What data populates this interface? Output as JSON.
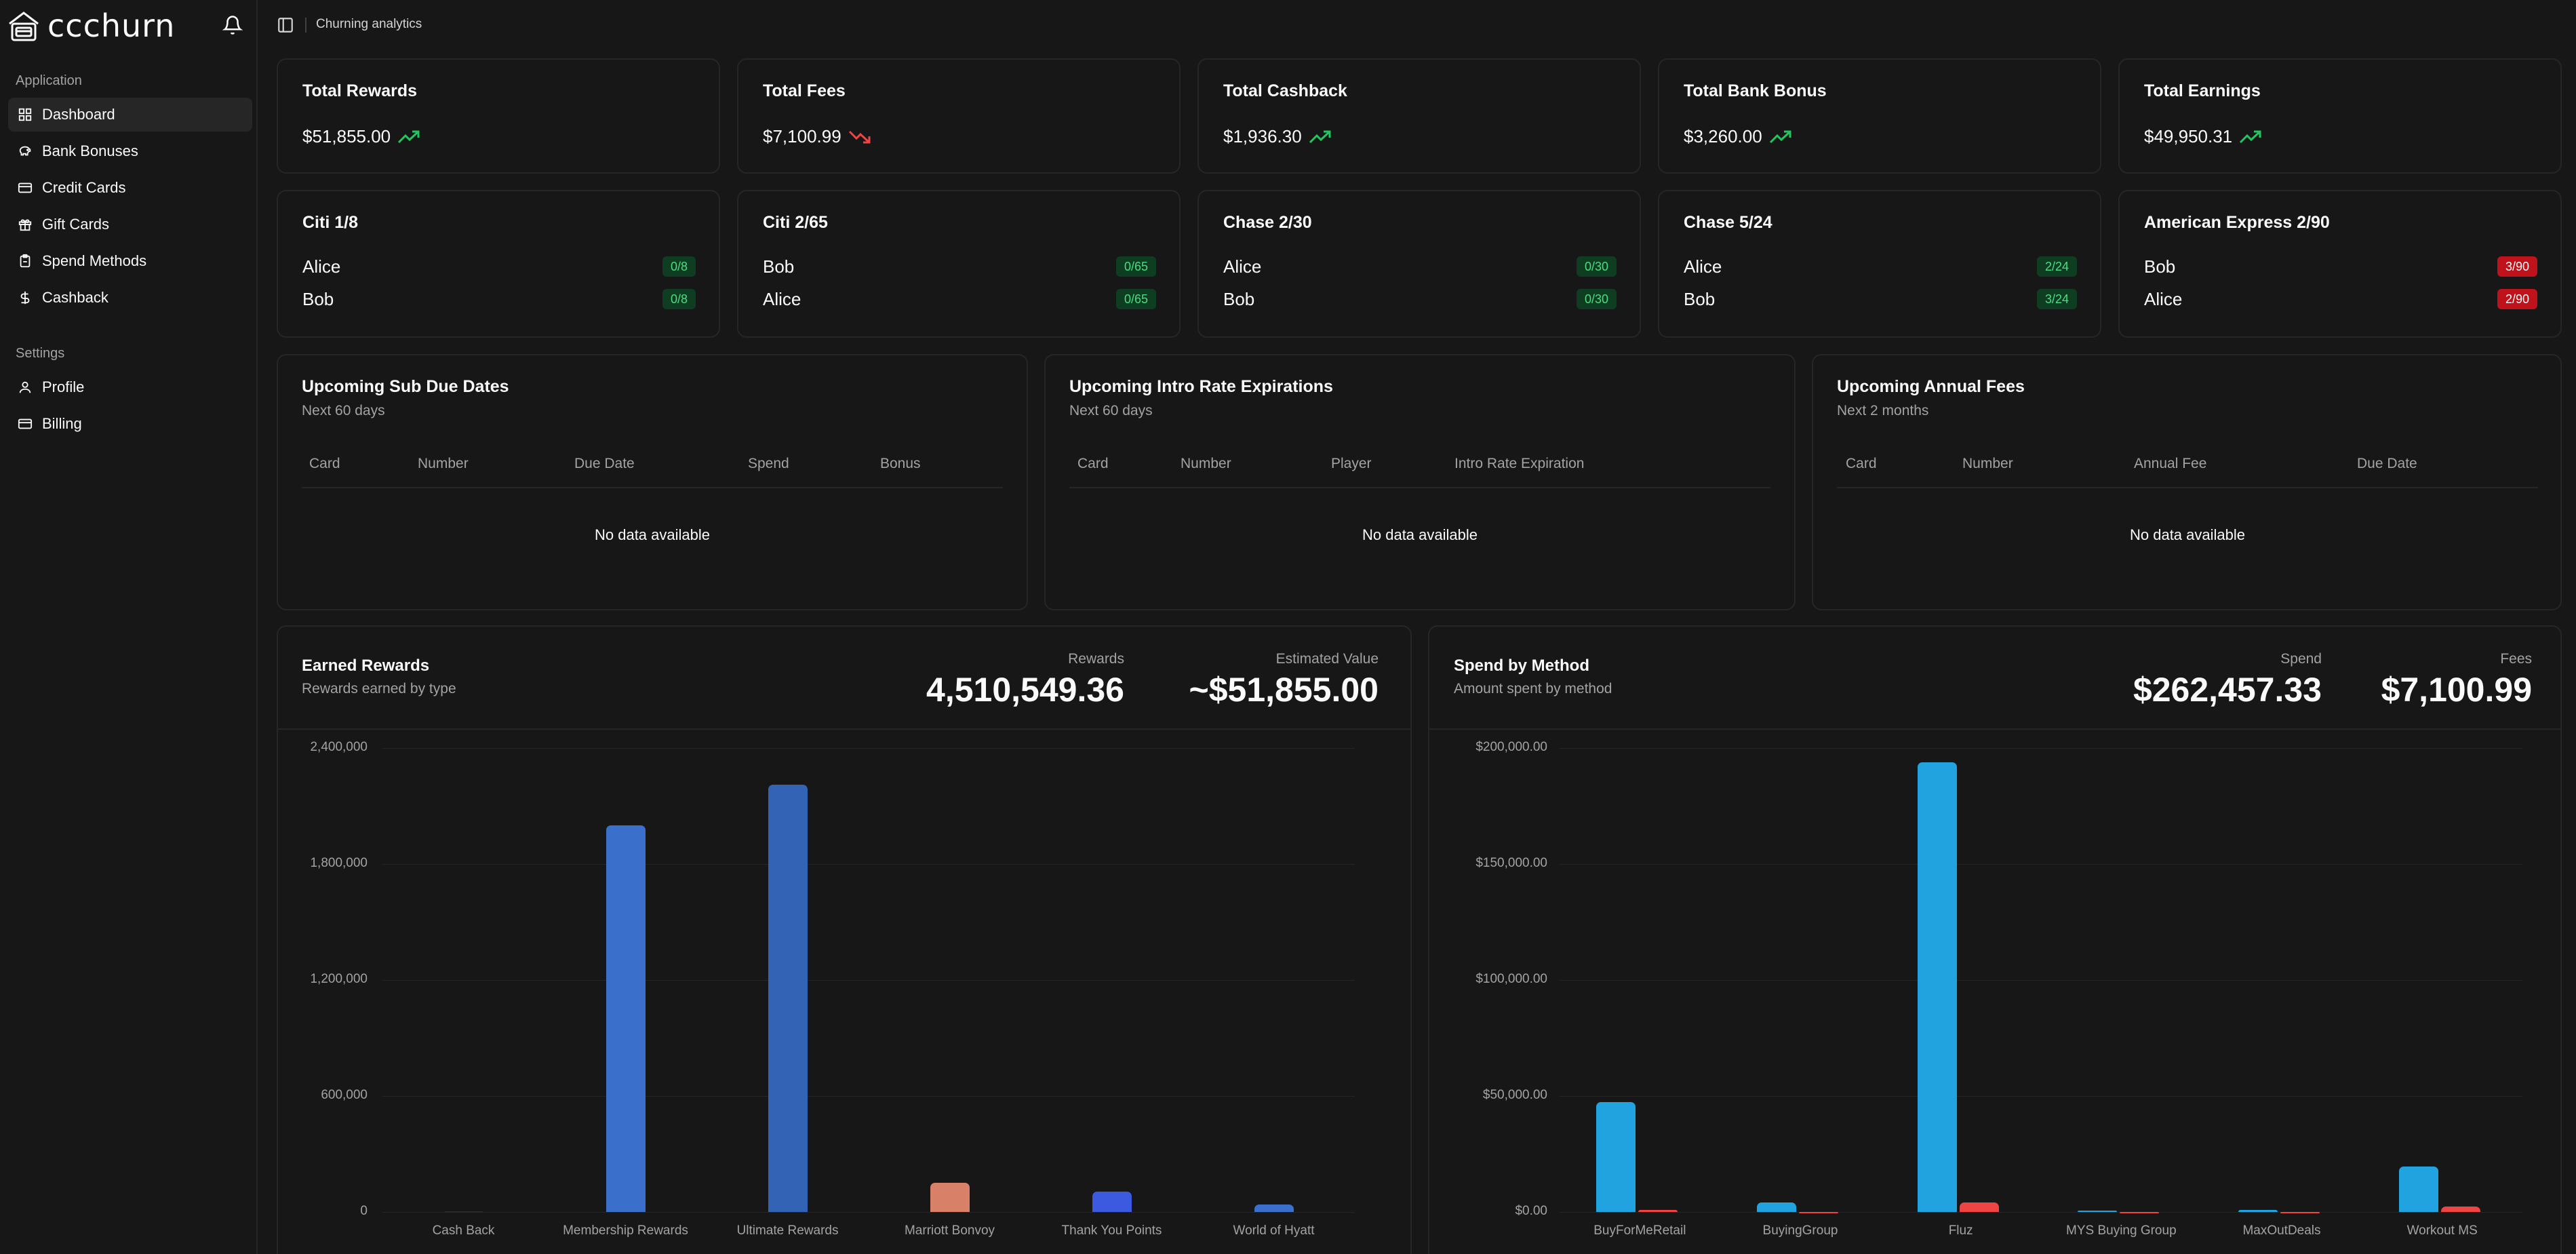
{
  "app": {
    "brand": "ccchurn",
    "breadcrumb": "Churning analytics"
  },
  "sidebar": {
    "application_label": "Application",
    "settings_label": "Settings",
    "items": [
      {
        "label": "Dashboard",
        "icon": "grid-icon",
        "active": true
      },
      {
        "label": "Bank Bonuses",
        "icon": "piggy-bank-icon"
      },
      {
        "label": "Credit Cards",
        "icon": "credit-card-icon"
      },
      {
        "label": "Gift Cards",
        "icon": "gift-icon"
      },
      {
        "label": "Spend Methods",
        "icon": "clipboard-icon"
      },
      {
        "label": "Cashback",
        "icon": "dollar-icon"
      }
    ],
    "settings": [
      {
        "label": "Profile",
        "icon": "user-icon"
      },
      {
        "label": "Billing",
        "icon": "credit-card-icon"
      }
    ]
  },
  "stats": [
    {
      "title": "Total Rewards",
      "value": "$51,855.00",
      "trend": "up"
    },
    {
      "title": "Total Fees",
      "value": "$7,100.99",
      "trend": "down"
    },
    {
      "title": "Total Cashback",
      "value": "$1,936.30",
      "trend": "up"
    },
    {
      "title": "Total Bank Bonus",
      "value": "$3,260.00",
      "trend": "up"
    },
    {
      "title": "Total Earnings",
      "value": "$49,950.31",
      "trend": "up"
    }
  ],
  "rules": [
    {
      "title": "Citi 1/8",
      "rows": [
        {
          "name": "Alice",
          "badge": "0/8",
          "status": "ok"
        },
        {
          "name": "Bob",
          "badge": "0/8",
          "status": "ok"
        }
      ]
    },
    {
      "title": "Citi 2/65",
      "rows": [
        {
          "name": "Bob",
          "badge": "0/65",
          "status": "ok"
        },
        {
          "name": "Alice",
          "badge": "0/65",
          "status": "ok"
        }
      ]
    },
    {
      "title": "Chase 2/30",
      "rows": [
        {
          "name": "Alice",
          "badge": "0/30",
          "status": "ok"
        },
        {
          "name": "Bob",
          "badge": "0/30",
          "status": "ok"
        }
      ]
    },
    {
      "title": "Chase 5/24",
      "rows": [
        {
          "name": "Alice",
          "badge": "2/24",
          "status": "ok"
        },
        {
          "name": "Bob",
          "badge": "3/24",
          "status": "ok"
        }
      ]
    },
    {
      "title": "American Express 2/90",
      "rows": [
        {
          "name": "Bob",
          "badge": "3/90",
          "status": "bad"
        },
        {
          "name": "Alice",
          "badge": "2/90",
          "status": "bad"
        }
      ]
    }
  ],
  "tables": [
    {
      "title": "Upcoming Sub Due Dates",
      "subtitle": "Next 60 days",
      "columns": [
        "Card",
        "Number",
        "Due Date",
        "Spend",
        "Bonus"
      ],
      "empty": "No data available"
    },
    {
      "title": "Upcoming Intro Rate Expirations",
      "subtitle": "Next 60 days",
      "columns": [
        "Card",
        "Number",
        "Player",
        "Intro Rate Expiration"
      ],
      "empty": "No data available"
    },
    {
      "title": "Upcoming Annual Fees",
      "subtitle": "Next 2 months",
      "columns": [
        "Card",
        "Number",
        "Annual Fee",
        "Due Date"
      ],
      "empty": "No data available"
    }
  ],
  "rewards_panel": {
    "title": "Earned Rewards",
    "subtitle": "Rewards earned by type",
    "metric1_label": "Rewards",
    "metric1_value": "4,510,549.36",
    "metric2_label": "Estimated Value",
    "metric2_value": "~$51,855.00"
  },
  "spend_panel": {
    "title": "Spend by Method",
    "subtitle": "Amount spent by method",
    "metric1_label": "Spend",
    "metric1_value": "$262,457.33",
    "metric2_label": "Fees",
    "metric2_value": "$7,100.99"
  },
  "chart_data": [
    {
      "type": "bar",
      "title": "Earned Rewards",
      "categories": [
        "Cash Back",
        "Membership Rewards",
        "Ultimate Rewards",
        "Marriott Bonvoy",
        "Thank You Points",
        "World of Hyatt"
      ],
      "values": [
        4000,
        2000000,
        2210000,
        150000,
        105000,
        40000
      ],
      "colors": [
        "#2a2a2a",
        "#3a70cc",
        "#3263b5",
        "#d98068",
        "#3c5ae0",
        "#3a70cc"
      ],
      "yticks": [
        "0",
        "600,000",
        "1,200,000",
        "1,800,000",
        "2,400,000"
      ],
      "ylim": [
        0,
        2400000
      ],
      "grid": true
    },
    {
      "type": "bar",
      "title": "Spend by Method",
      "categories": [
        "BuyForMeRetail",
        "BuyingGroup",
        "Fluz",
        "MYS Buying Group",
        "MaxOutDeals",
        "Workout MS"
      ],
      "series": [
        {
          "values": [
            47500,
            4000,
            194000,
            500,
            1000,
            19500
          ],
          "color": "#21a3e0"
        },
        {
          "values": [
            1000,
            0,
            4000,
            0,
            0,
            2400
          ],
          "color": "#ef4444"
        }
      ],
      "yticks": [
        "$0.00",
        "$50,000.00",
        "$100,000.00",
        "$150,000.00",
        "$200,000.00"
      ],
      "ylim": [
        0,
        200000
      ],
      "grid": true
    }
  ]
}
